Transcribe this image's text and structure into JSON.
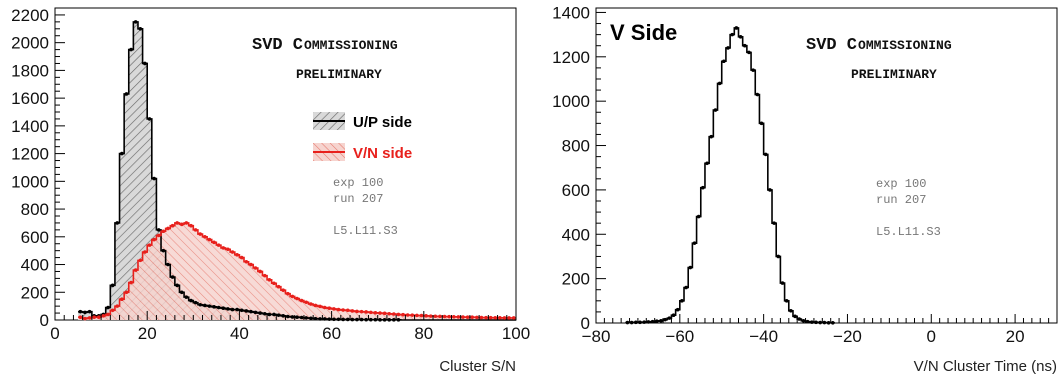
{
  "chart_data": [
    {
      "type": "histogram",
      "title": "SVD Commissioning",
      "subtitle": "PRELIMINARY",
      "xlabel": "Cluster S/N",
      "ylabel": "",
      "xlim": [
        0,
        100
      ],
      "ylim": [
        0,
        2250
      ],
      "bin_width": 1,
      "x_ticks": [
        0,
        20,
        40,
        60,
        80,
        100
      ],
      "y_ticks": [
        0,
        200,
        400,
        600,
        800,
        1000,
        1200,
        1400,
        1600,
        1800,
        2000,
        2200
      ],
      "info": [
        "exp 100",
        "run 207",
        "L5.L11.S3"
      ],
      "legend_position": "right-center",
      "series": [
        {
          "name": "U/P side",
          "color": "#000000",
          "fill": "diagonal-hatch-gray",
          "x_start": 5,
          "values": [
            60,
            55,
            60,
            30,
            30,
            40,
            90,
            250,
            700,
            1200,
            1630,
            1950,
            2150,
            2100,
            1850,
            1450,
            1020,
            650,
            500,
            400,
            310,
            250,
            200,
            165,
            140,
            125,
            110,
            105,
            100,
            95,
            90,
            85,
            80,
            75,
            75,
            70,
            65,
            60,
            55,
            50,
            45,
            40,
            40,
            35,
            30,
            25,
            22,
            20,
            18,
            15,
            12,
            10,
            8,
            8,
            6,
            5,
            5,
            4,
            4,
            3,
            3,
            3,
            2,
            2,
            2,
            1,
            1,
            1,
            1,
            1,
            0,
            0,
            0,
            0,
            0,
            0,
            0,
            0,
            0,
            0,
            0,
            0,
            0,
            0,
            0,
            0,
            0,
            0,
            0,
            0,
            0,
            0,
            0,
            0,
            0
          ]
        },
        {
          "name": "V/N side",
          "color": "#e8201c",
          "fill": "diagonal-hatch-red",
          "x_start": 5,
          "values": [
            20,
            10,
            15,
            20,
            20,
            30,
            40,
            70,
            100,
            150,
            200,
            270,
            360,
            430,
            490,
            540,
            580,
            610,
            640,
            660,
            680,
            700,
            690,
            700,
            680,
            650,
            620,
            600,
            580,
            560,
            540,
            520,
            510,
            490,
            470,
            450,
            420,
            400,
            375,
            350,
            320,
            290,
            265,
            240,
            215,
            190,
            170,
            155,
            140,
            128,
            115,
            105,
            98,
            90,
            85,
            80,
            75,
            72,
            70,
            65,
            62,
            60,
            58,
            55,
            52,
            50,
            48,
            45,
            43,
            40,
            38,
            36,
            35,
            33,
            32,
            30,
            28,
            27,
            26,
            25,
            24,
            23,
            22,
            21,
            20,
            20,
            19,
            18,
            17,
            17,
            16,
            16,
            15,
            15,
            15
          ]
        }
      ]
    },
    {
      "type": "histogram",
      "title": "SVD Commissioning",
      "subtitle": "PRELIMINARY",
      "xlabel": "V/N Cluster Time (ns)",
      "ylabel": "",
      "xlim": [
        -80,
        30
      ],
      "ylim": [
        0,
        1420
      ],
      "bin_width": 1,
      "x_ticks": [
        -80,
        -60,
        -40,
        -20,
        0,
        20
      ],
      "y_ticks": [
        0,
        200,
        400,
        600,
        800,
        1000,
        1200,
        1400
      ],
      "info": [
        "exp 100",
        "run 207",
        "L5.L11.S3"
      ],
      "series": [
        {
          "name": "V Side",
          "color": "#000000",
          "x_start": -73,
          "values": [
            2,
            2,
            3,
            3,
            4,
            5,
            6,
            8,
            10,
            15,
            22,
            35,
            60,
            100,
            160,
            250,
            360,
            480,
            610,
            720,
            840,
            960,
            1080,
            1180,
            1240,
            1300,
            1330,
            1290,
            1250,
            1220,
            1140,
            1030,
            900,
            760,
            600,
            450,
            300,
            180,
            100,
            55,
            30,
            18,
            10,
            6,
            4,
            3,
            2,
            2,
            1,
            1
          ]
        }
      ]
    }
  ],
  "labels": {
    "left_title_big": "SVD C",
    "left_title_small": "OMMISSIONING",
    "left_prelim": "PRELIMINARY",
    "right_title_big": "SVD C",
    "right_title_small": "OMMISSIONING",
    "right_prelim": "PRELIMINARY",
    "right_side_label": "V Side",
    "info_exp": "exp 100",
    "info_run": "run 207",
    "info_module": "L5.L11.S3",
    "left_xlabel": "Cluster S/N",
    "right_xlabel": "V/N Cluster Time (ns)",
    "legend_up": "U/P side",
    "legend_vn": "V/N side"
  }
}
